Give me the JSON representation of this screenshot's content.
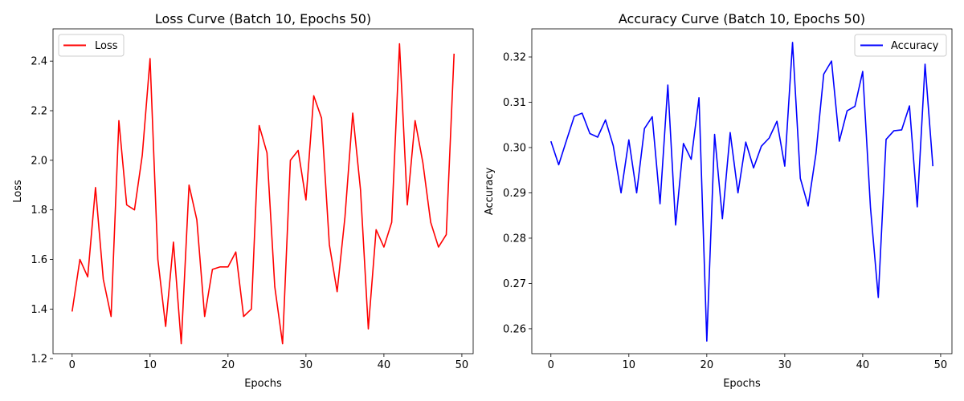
{
  "chart_data": [
    {
      "type": "line",
      "title": "Loss Curve (Batch 10, Epochs 50)",
      "xlabel": "Epochs",
      "ylabel": "Loss",
      "xlim": [
        -2.45,
        51.45
      ],
      "ylim": [
        1.22,
        2.53
      ],
      "xticks": [
        0,
        10,
        20,
        30,
        40,
        50
      ],
      "xtick_labels": [
        "0",
        "10",
        "20",
        "30",
        "40",
        "50"
      ],
      "yticks": [
        1.2,
        1.4,
        1.6,
        1.8,
        2.0,
        2.2,
        2.4
      ],
      "ytick_labels": [
        "1.2",
        "1.4",
        "1.6",
        "1.8",
        "2.0",
        "2.2",
        "2.4"
      ],
      "legend_position": "upper left",
      "grid": false,
      "series": [
        {
          "name": "Loss",
          "color": "#ff0000",
          "x": [
            0,
            1,
            2,
            3,
            4,
            5,
            6,
            7,
            8,
            9,
            10,
            11,
            12,
            13,
            14,
            15,
            16,
            17,
            18,
            19,
            20,
            21,
            22,
            23,
            24,
            25,
            26,
            27,
            28,
            29,
            30,
            31,
            32,
            33,
            34,
            35,
            36,
            37,
            38,
            39,
            40,
            41,
            42,
            43,
            44,
            45,
            46,
            47,
            48,
            49
          ],
          "y": [
            1.39,
            1.6,
            1.53,
            1.89,
            1.52,
            1.37,
            2.16,
            1.82,
            1.8,
            2.02,
            2.41,
            1.6,
            1.33,
            1.67,
            1.26,
            1.9,
            1.76,
            1.37,
            1.56,
            1.57,
            1.57,
            1.63,
            1.37,
            1.4,
            2.14,
            2.03,
            1.49,
            1.26,
            2.0,
            2.04,
            1.84,
            2.26,
            2.17,
            1.66,
            1.47,
            1.77,
            2.19,
            1.88,
            1.32,
            1.72,
            1.65,
            1.75,
            2.47,
            1.82,
            2.16,
            1.99,
            1.75,
            1.65,
            1.7,
            2.43
          ]
        }
      ]
    },
    {
      "type": "line",
      "title": "Accuracy Curve (Batch 10, Epochs 50)",
      "xlabel": "Epochs",
      "ylabel": "Accuracy",
      "xlim": [
        -2.45,
        51.45
      ],
      "ylim": [
        0.2545,
        0.3262
      ],
      "xticks": [
        0,
        10,
        20,
        30,
        40,
        50
      ],
      "xtick_labels": [
        "0",
        "10",
        "20",
        "30",
        "40",
        "50"
      ],
      "yticks": [
        0.26,
        0.27,
        0.28,
        0.29,
        0.3,
        0.31,
        0.32
      ],
      "ytick_labels": [
        "0.26",
        "0.27",
        "0.28",
        "0.29",
        "0.30",
        "0.31",
        "0.32"
      ],
      "legend_position": "upper right",
      "grid": false,
      "series": [
        {
          "name": "Accuracy",
          "color": "#0000ff",
          "x": [
            0,
            1,
            2,
            3,
            4,
            5,
            6,
            7,
            8,
            9,
            10,
            11,
            12,
            13,
            14,
            15,
            16,
            17,
            18,
            19,
            20,
            21,
            22,
            23,
            24,
            25,
            26,
            27,
            28,
            29,
            30,
            31,
            32,
            33,
            34,
            35,
            36,
            37,
            38,
            39,
            40,
            41,
            42,
            43,
            44,
            45,
            46,
            47,
            48,
            49
          ],
          "y": [
            0.3014,
            0.2962,
            0.3016,
            0.3069,
            0.3076,
            0.3031,
            0.3023,
            0.3061,
            0.3004,
            0.29,
            0.3017,
            0.29,
            0.3042,
            0.3068,
            0.2876,
            0.3138,
            0.2829,
            0.3009,
            0.2974,
            0.311,
            0.2573,
            0.3029,
            0.2843,
            0.3033,
            0.29,
            0.3012,
            0.2955,
            0.3003,
            0.3021,
            0.3058,
            0.2959,
            0.3232,
            0.2932,
            0.2871,
            0.2986,
            0.3162,
            0.3191,
            0.3014,
            0.3081,
            0.3091,
            0.3168,
            0.2867,
            0.2669,
            0.3018,
            0.3037,
            0.3039,
            0.3092,
            0.2869,
            0.3184,
            0.2959
          ]
        }
      ]
    }
  ]
}
